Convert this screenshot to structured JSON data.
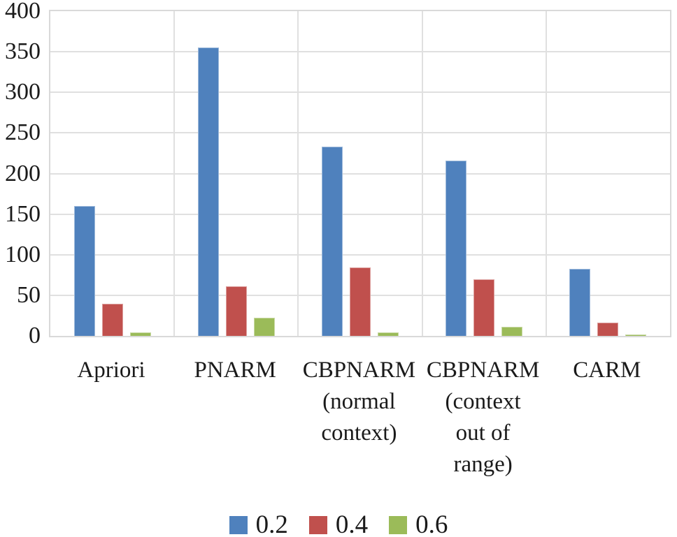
{
  "figure": {
    "background": "#ffffff",
    "text_color": "#1a1a1a",
    "gridline_color": "#e0e0e0",
    "plot_border_color": "#d9d9d9"
  },
  "chart_data": {
    "type": "bar",
    "title": "",
    "xlabel": "",
    "ylabel": "",
    "categories": [
      "Apriori",
      "PNARM",
      "CBPNARM (normal context)",
      "CBPNARM (context out of range)",
      "CARM"
    ],
    "category_label_lines": [
      [
        "Apriori"
      ],
      [
        "PNARM"
      ],
      [
        "CBPNARM",
        "(normal",
        "context)"
      ],
      [
        "CBPNARM",
        "(context",
        "out of",
        "range)"
      ],
      [
        "CARM"
      ]
    ],
    "series": [
      {
        "name": "0.2",
        "color": "#4F81BD",
        "values": [
          160,
          355,
          233,
          216,
          83
        ]
      },
      {
        "name": "0.4",
        "color": "#C0504D",
        "values": [
          40,
          61,
          84,
          70,
          16
        ]
      },
      {
        "name": "0.6",
        "color": "#9BBB59",
        "values": [
          4,
          22,
          4,
          11,
          2
        ]
      }
    ],
    "ylim": [
      0,
      400
    ],
    "yticks": [
      0,
      50,
      100,
      150,
      200,
      250,
      300,
      350,
      400
    ],
    "grid": true,
    "legend_position": "bottom"
  }
}
